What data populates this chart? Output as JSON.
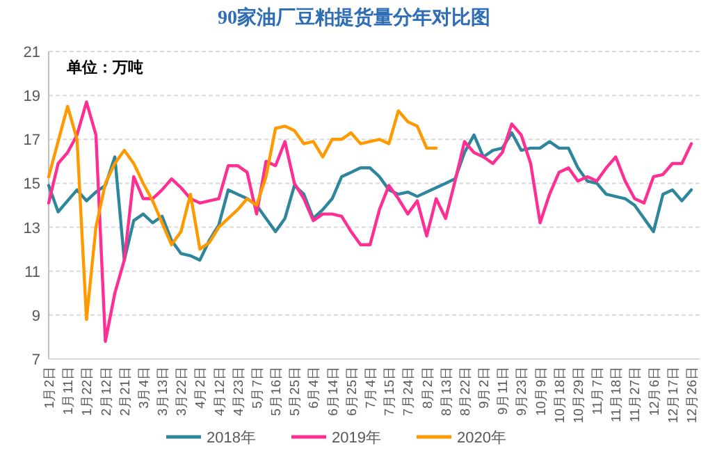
{
  "chart_data": {
    "type": "line",
    "title": "90家油厂豆粕提货量分年对比图",
    "annotations": [
      "单位：万吨"
    ],
    "categories": [
      "1月2日",
      null,
      "1月11日",
      null,
      "1月22日",
      null,
      "2月12日",
      null,
      "2月21日",
      null,
      "3月4日",
      null,
      "3月13日",
      null,
      "3月22日",
      null,
      "4月2日",
      null,
      "4月12日",
      null,
      "4月23日",
      null,
      "5月7日",
      null,
      "5月16日",
      null,
      "5月25日",
      null,
      "6月4日",
      null,
      "6月14日",
      null,
      "6月25日",
      null,
      "7月4日",
      null,
      "7月15日",
      null,
      "7月24日",
      null,
      "8月2日",
      null,
      "8月13日",
      null,
      "8月22日",
      null,
      "9月2日",
      null,
      "9月11日",
      null,
      "9月23日",
      null,
      "10月9日",
      null,
      "10月18日",
      null,
      "10月29日",
      null,
      "11月7日",
      null,
      "11月18日",
      null,
      "11月27日",
      null,
      "12月6日",
      null,
      "12月17日",
      null,
      "12月26日"
    ],
    "series": [
      {
        "name": "2018年",
        "color": "#2e869c",
        "values": [
          14.9,
          13.7,
          14.2,
          14.7,
          14.2,
          14.6,
          14.9,
          16.2,
          11.5,
          13.3,
          13.6,
          13.2,
          13.5,
          12.4,
          11.8,
          11.7,
          11.5,
          12.4,
          13.1,
          14.7,
          14.5,
          14.3,
          14.0,
          13.4,
          12.8,
          13.4,
          14.9,
          14.5,
          13.4,
          13.8,
          14.3,
          15.3,
          15.5,
          15.7,
          15.7,
          15.3,
          14.7,
          14.5,
          14.6,
          14.4,
          14.6,
          14.8,
          15.0,
          15.2,
          16.4,
          17.2,
          16.2,
          16.5,
          16.6,
          17.3,
          16.5,
          16.6,
          16.6,
          16.9,
          16.6,
          16.6,
          15.7,
          15.1,
          15.0,
          14.5,
          14.4,
          14.3,
          14.0,
          13.4,
          12.8,
          14.5,
          14.7,
          14.2,
          14.7
        ]
      },
      {
        "name": "2019年",
        "color": "#ff2e93",
        "values": [
          14.1,
          15.9,
          16.4,
          17.2,
          18.7,
          17.2,
          7.8,
          10.0,
          11.5,
          15.3,
          14.3,
          14.3,
          14.7,
          15.2,
          14.8,
          14.3,
          14.1,
          14.2,
          14.3,
          15.8,
          15.8,
          15.5,
          13.6,
          16.0,
          15.8,
          16.9,
          15.0,
          14.3,
          13.3,
          13.6,
          13.6,
          13.5,
          12.8,
          12.2,
          12.2,
          13.8,
          14.9,
          14.3,
          13.6,
          14.2,
          12.6,
          14.3,
          13.4,
          15.1,
          16.9,
          16.4,
          16.2,
          15.9,
          16.4,
          17.7,
          17.2,
          15.9,
          13.2,
          14.5,
          15.5,
          15.7,
          15.1,
          15.3,
          15.1,
          15.7,
          16.2,
          15.1,
          14.3,
          14.1,
          15.3,
          15.4,
          15.9,
          15.9,
          16.8
        ]
      },
      {
        "name": "2020年",
        "color": "#ff9900",
        "values": [
          15.3,
          16.9,
          18.5,
          17.0,
          8.8,
          13.0,
          15.0,
          15.9,
          16.5,
          15.9,
          15.0,
          14.2,
          13.2,
          12.2,
          12.8,
          14.5,
          12.0,
          12.3,
          13.0,
          13.4,
          13.8,
          14.3,
          14.0,
          15.3,
          17.5,
          17.6,
          17.4,
          16.8,
          16.9,
          16.2,
          17.0,
          17.0,
          17.3,
          16.8,
          16.9,
          17.0,
          16.8,
          18.3,
          17.8,
          17.6,
          16.6,
          16.6,
          null,
          null,
          null,
          null,
          null,
          null,
          null,
          null,
          null,
          null,
          null,
          null,
          null,
          null,
          null,
          null,
          null,
          null,
          null,
          null,
          null,
          null,
          null,
          null,
          null,
          null,
          null
        ]
      }
    ],
    "ylim": [
      7,
      21
    ],
    "yticks": [
      7,
      9,
      11,
      13,
      15,
      17,
      19,
      21
    ],
    "grid": "y",
    "legend": "bottom"
  }
}
